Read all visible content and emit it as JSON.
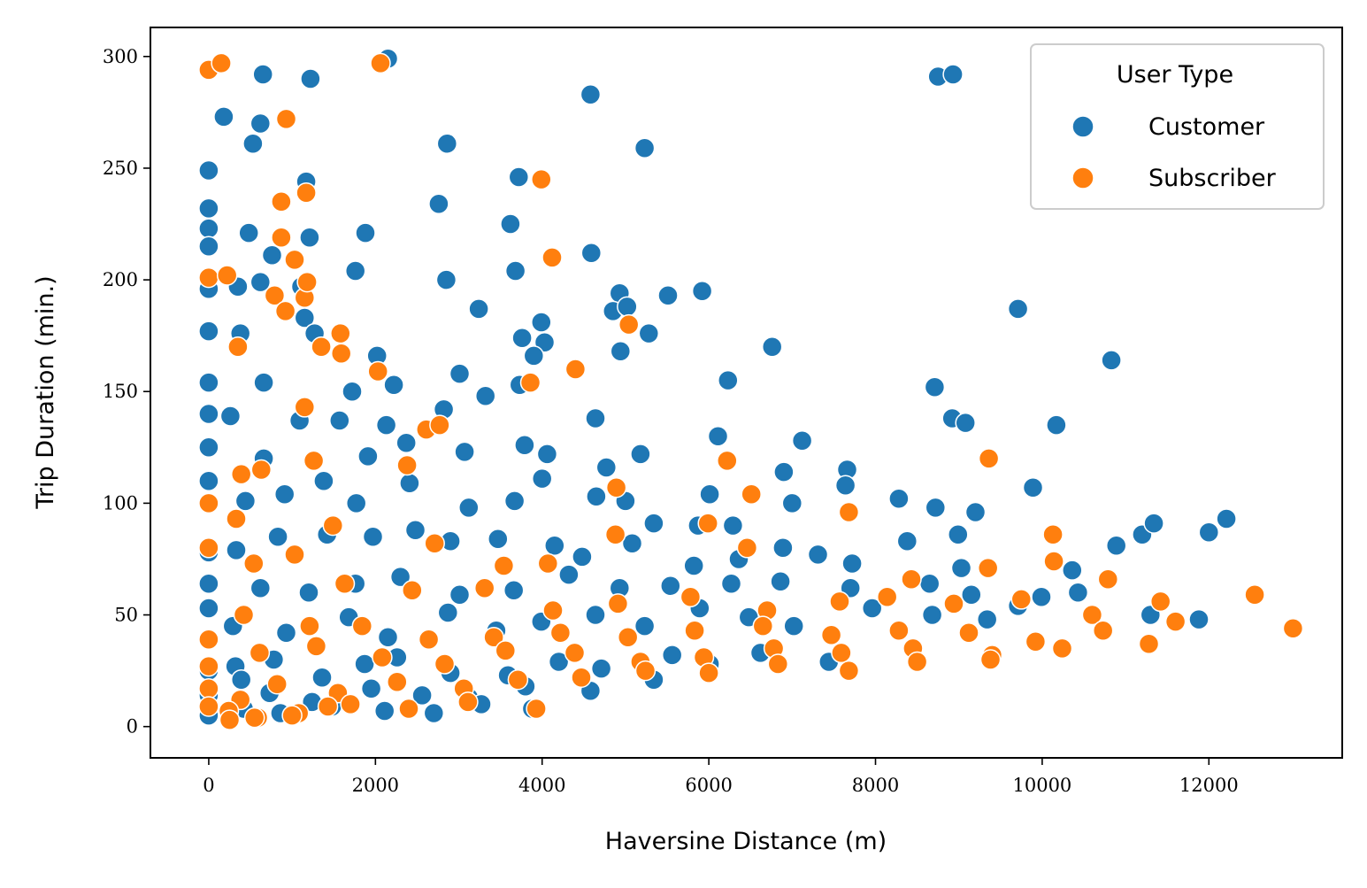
{
  "chart_data": {
    "type": "scatter",
    "xlabel": "Haversine Distance (m)",
    "ylabel": "Trip Duration (min.)",
    "xlim": [
      -700,
      13600
    ],
    "ylim": [
      -14,
      313
    ],
    "x_ticks": [
      0,
      2000,
      4000,
      6000,
      8000,
      10000,
      12000
    ],
    "y_ticks": [
      0,
      50,
      100,
      150,
      200,
      250,
      300
    ],
    "grid": false,
    "legend": {
      "title": "User Type",
      "placement": "top-right"
    },
    "series": [
      {
        "name": "Customer",
        "color": "#1f77b4",
        "points": [
          [
            2150,
            299
          ],
          [
            650,
            292
          ],
          [
            1220,
            290
          ],
          [
            4580,
            283
          ],
          [
            8750,
            291
          ],
          [
            8930,
            292
          ],
          [
            180,
            273
          ],
          [
            620,
            270
          ],
          [
            530,
            261
          ],
          [
            2860,
            261
          ],
          [
            5230,
            259
          ],
          [
            0,
            249
          ],
          [
            1170,
            244
          ],
          [
            3720,
            246
          ],
          [
            0,
            232
          ],
          [
            2760,
            234
          ],
          [
            3620,
            225
          ],
          [
            0,
            223
          ],
          [
            480,
            221
          ],
          [
            1210,
            219
          ],
          [
            1880,
            221
          ],
          [
            0,
            215
          ],
          [
            760,
            211
          ],
          [
            4590,
            212
          ],
          [
            3680,
            204
          ],
          [
            1760,
            204
          ],
          [
            2850,
            200
          ],
          [
            0,
            196
          ],
          [
            350,
            197
          ],
          [
            620,
            199
          ],
          [
            1110,
            197
          ],
          [
            4930,
            194
          ],
          [
            5510,
            193
          ],
          [
            5920,
            195
          ],
          [
            4850,
            186
          ],
          [
            5020,
            188
          ],
          [
            3240,
            187
          ],
          [
            9710,
            187
          ],
          [
            0,
            177
          ],
          [
            380,
            176
          ],
          [
            1150,
            183
          ],
          [
            1270,
            176
          ],
          [
            3990,
            181
          ],
          [
            5280,
            176
          ],
          [
            3760,
            174
          ],
          [
            4030,
            172
          ],
          [
            6760,
            170
          ],
          [
            4940,
            168
          ],
          [
            3900,
            166
          ],
          [
            2020,
            166
          ],
          [
            0,
            154
          ],
          [
            660,
            154
          ],
          [
            1720,
            150
          ],
          [
            2220,
            153
          ],
          [
            3730,
            153
          ],
          [
            6230,
            155
          ],
          [
            8710,
            152
          ],
          [
            10830,
            164
          ],
          [
            0,
            140
          ],
          [
            260,
            139
          ],
          [
            1570,
            137
          ],
          [
            2130,
            135
          ],
          [
            2820,
            142
          ],
          [
            3010,
            158
          ],
          [
            3320,
            148
          ],
          [
            4640,
            138
          ],
          [
            8920,
            138
          ],
          [
            9080,
            136
          ],
          [
            10170,
            135
          ],
          [
            0,
            125
          ],
          [
            660,
            120
          ],
          [
            1090,
            137
          ],
          [
            1910,
            121
          ],
          [
            2370,
            127
          ],
          [
            3070,
            123
          ],
          [
            3790,
            126
          ],
          [
            4060,
            122
          ],
          [
            4770,
            116
          ],
          [
            5180,
            122
          ],
          [
            6110,
            130
          ],
          [
            7120,
            128
          ],
          [
            6900,
            114
          ],
          [
            7660,
            115
          ],
          [
            9890,
            107
          ],
          [
            0,
            110
          ],
          [
            440,
            101
          ],
          [
            910,
            104
          ],
          [
            1380,
            110
          ],
          [
            1770,
            100
          ],
          [
            2410,
            109
          ],
          [
            3120,
            98
          ],
          [
            3670,
            101
          ],
          [
            4000,
            111
          ],
          [
            4650,
            103
          ],
          [
            5000,
            101
          ],
          [
            5340,
            91
          ],
          [
            5870,
            90
          ],
          [
            6010,
            104
          ],
          [
            6290,
            90
          ],
          [
            7000,
            100
          ],
          [
            7640,
            108
          ],
          [
            8280,
            102
          ],
          [
            8720,
            98
          ],
          [
            9200,
            96
          ],
          [
            11200,
            86
          ],
          [
            11340,
            91
          ],
          [
            12000,
            87
          ],
          [
            12210,
            93
          ],
          [
            0,
            78
          ],
          [
            330,
            79
          ],
          [
            830,
            85
          ],
          [
            1420,
            86
          ],
          [
            1970,
            85
          ],
          [
            2480,
            88
          ],
          [
            2900,
            83
          ],
          [
            3470,
            84
          ],
          [
            4150,
            81
          ],
          [
            4480,
            76
          ],
          [
            5080,
            82
          ],
          [
            5820,
            72
          ],
          [
            6360,
            75
          ],
          [
            6890,
            80
          ],
          [
            7310,
            77
          ],
          [
            7720,
            73
          ],
          [
            8380,
            83
          ],
          [
            8990,
            86
          ],
          [
            9030,
            71
          ],
          [
            10360,
            70
          ],
          [
            10890,
            81
          ],
          [
            0,
            64
          ],
          [
            620,
            62
          ],
          [
            1200,
            60
          ],
          [
            1760,
            64
          ],
          [
            2300,
            67
          ],
          [
            3010,
            59
          ],
          [
            3660,
            61
          ],
          [
            4320,
            68
          ],
          [
            4930,
            62
          ],
          [
            5540,
            63
          ],
          [
            6270,
            64
          ],
          [
            6860,
            65
          ],
          [
            7700,
            62
          ],
          [
            8650,
            64
          ],
          [
            9150,
            59
          ],
          [
            9990,
            58
          ],
          [
            10430,
            60
          ],
          [
            0,
            53
          ],
          [
            290,
            45
          ],
          [
            930,
            42
          ],
          [
            1680,
            49
          ],
          [
            2150,
            40
          ],
          [
            2870,
            51
          ],
          [
            3450,
            43
          ],
          [
            3990,
            47
          ],
          [
            4640,
            50
          ],
          [
            5230,
            45
          ],
          [
            5890,
            53
          ],
          [
            6480,
            49
          ],
          [
            7020,
            45
          ],
          [
            7960,
            53
          ],
          [
            8680,
            50
          ],
          [
            9340,
            48
          ],
          [
            9710,
            54
          ],
          [
            11300,
            50
          ],
          [
            11880,
            48
          ],
          [
            0,
            25
          ],
          [
            320,
            27
          ],
          [
            780,
            30
          ],
          [
            1360,
            22
          ],
          [
            1870,
            28
          ],
          [
            2260,
            31
          ],
          [
            2900,
            24
          ],
          [
            3590,
            23
          ],
          [
            4200,
            29
          ],
          [
            4710,
            26
          ],
          [
            5560,
            32
          ],
          [
            6010,
            28
          ],
          [
            6620,
            33
          ],
          [
            7440,
            29
          ],
          [
            0,
            14
          ],
          [
            390,
            21
          ],
          [
            730,
            15
          ],
          [
            1240,
            11
          ],
          [
            1950,
            17
          ],
          [
            2560,
            14
          ],
          [
            3120,
            13
          ],
          [
            3800,
            18
          ],
          [
            4580,
            16
          ],
          [
            5340,
            21
          ],
          [
            0,
            5
          ],
          [
            420,
            8
          ],
          [
            860,
            6
          ],
          [
            1480,
            9
          ],
          [
            2110,
            7
          ],
          [
            2700,
            6
          ],
          [
            3270,
            10
          ],
          [
            3880,
            8
          ]
        ]
      },
      {
        "name": "Subscriber",
        "color": "#ff7f0e",
        "points": [
          [
            0,
            294
          ],
          [
            150,
            297
          ],
          [
            2060,
            297
          ],
          [
            930,
            272
          ],
          [
            3990,
            245
          ],
          [
            870,
            235
          ],
          [
            1170,
            239
          ],
          [
            870,
            219
          ],
          [
            0,
            201
          ],
          [
            220,
            202
          ],
          [
            4120,
            210
          ],
          [
            1030,
            209
          ],
          [
            790,
            193
          ],
          [
            1150,
            192
          ],
          [
            1180,
            199
          ],
          [
            920,
            186
          ],
          [
            5040,
            180
          ],
          [
            1580,
            176
          ],
          [
            1350,
            170
          ],
          [
            350,
            170
          ],
          [
            1590,
            167
          ],
          [
            4400,
            160
          ],
          [
            2030,
            159
          ],
          [
            3860,
            154
          ],
          [
            1150,
            143
          ],
          [
            2610,
            133
          ],
          [
            2770,
            135
          ],
          [
            9360,
            120
          ],
          [
            1260,
            119
          ],
          [
            2380,
            117
          ],
          [
            6220,
            119
          ],
          [
            6510,
            104
          ],
          [
            4890,
            107
          ],
          [
            630,
            115
          ],
          [
            390,
            113
          ],
          [
            10130,
            86
          ],
          [
            12550,
            59
          ],
          [
            13010,
            44
          ],
          [
            0,
            100
          ],
          [
            330,
            93
          ],
          [
            1030,
            77
          ],
          [
            1490,
            90
          ],
          [
            2710,
            82
          ],
          [
            3540,
            72
          ],
          [
            4070,
            73
          ],
          [
            4880,
            86
          ],
          [
            5990,
            91
          ],
          [
            6460,
            80
          ],
          [
            7680,
            96
          ],
          [
            8430,
            66
          ],
          [
            9350,
            71
          ],
          [
            10140,
            74
          ],
          [
            10790,
            66
          ],
          [
            11420,
            56
          ],
          [
            0,
            80
          ],
          [
            540,
            73
          ],
          [
            1630,
            64
          ],
          [
            2440,
            61
          ],
          [
            3310,
            62
          ],
          [
            4130,
            52
          ],
          [
            4910,
            55
          ],
          [
            5780,
            58
          ],
          [
            6700,
            52
          ],
          [
            7570,
            56
          ],
          [
            8140,
            58
          ],
          [
            8940,
            55
          ],
          [
            9750,
            57
          ],
          [
            10600,
            50
          ],
          [
            11600,
            47
          ],
          [
            0,
            39
          ],
          [
            420,
            50
          ],
          [
            1210,
            45
          ],
          [
            1840,
            45
          ],
          [
            2640,
            39
          ],
          [
            3420,
            40
          ],
          [
            4220,
            42
          ],
          [
            5030,
            40
          ],
          [
            5830,
            43
          ],
          [
            6650,
            45
          ],
          [
            7470,
            41
          ],
          [
            8280,
            43
          ],
          [
            9120,
            42
          ],
          [
            9920,
            38
          ],
          [
            10730,
            43
          ],
          [
            11280,
            37
          ],
          [
            0,
            27
          ],
          [
            610,
            33
          ],
          [
            1290,
            36
          ],
          [
            2080,
            31
          ],
          [
            2830,
            28
          ],
          [
            3560,
            34
          ],
          [
            4390,
            33
          ],
          [
            5180,
            29
          ],
          [
            5940,
            31
          ],
          [
            6780,
            35
          ],
          [
            7590,
            33
          ],
          [
            8450,
            35
          ],
          [
            9400,
            32
          ],
          [
            10240,
            35
          ],
          [
            0,
            17
          ],
          [
            380,
            12
          ],
          [
            820,
            19
          ],
          [
            1550,
            15
          ],
          [
            2260,
            20
          ],
          [
            3060,
            17
          ],
          [
            3710,
            21
          ],
          [
            4470,
            22
          ],
          [
            5240,
            25
          ],
          [
            6000,
            24
          ],
          [
            6830,
            28
          ],
          [
            7680,
            25
          ],
          [
            8500,
            29
          ],
          [
            9380,
            30
          ],
          [
            0,
            9
          ],
          [
            240,
            7
          ],
          [
            590,
            4
          ],
          [
            1080,
            6
          ],
          [
            1700,
            10
          ],
          [
            2400,
            8
          ],
          [
            3110,
            11
          ],
          [
            3930,
            8
          ],
          [
            250,
            3
          ],
          [
            550,
            4
          ],
          [
            1000,
            5
          ],
          [
            1430,
            9
          ]
        ]
      }
    ]
  }
}
